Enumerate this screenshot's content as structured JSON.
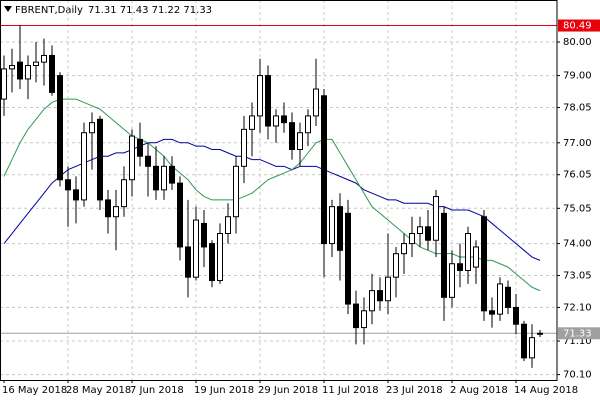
{
  "chart_data": {
    "type": "candlestick",
    "title": "FBRENT,Daily",
    "info": "71.31 71.43 71.22 71.33",
    "categories": [
      "16 May 2018",
      null,
      null,
      null,
      null,
      null,
      null,
      null,
      "28 May 2018",
      null,
      null,
      null,
      null,
      null,
      null,
      null,
      "7 Jun 2018",
      null,
      null,
      null,
      null,
      null,
      null,
      null,
      "19 Jun 2018",
      null,
      null,
      null,
      null,
      null,
      null,
      null,
      "29 Jun 2018",
      null,
      null,
      null,
      null,
      null,
      null,
      null,
      "11 Jul 2018",
      null,
      null,
      null,
      null,
      null,
      null,
      null,
      "23 Jul 2018",
      null,
      null,
      null,
      null,
      null,
      null,
      null,
      "2 Aug 2018",
      null,
      null,
      null,
      null,
      null,
      null,
      null,
      "14 Aug 2018",
      null,
      null,
      null
    ],
    "open": [
      78.3,
      79.2,
      79.4,
      78.9,
      79.3,
      79.4,
      79.6,
      79.0,
      75.9,
      75.6,
      75.3,
      77.3,
      77.7,
      75.3,
      74.8,
      75.1,
      75.9,
      77.1,
      76.6,
      76.3,
      75.6,
      76.3,
      75.8,
      73.9,
      73.0,
      74.6,
      74.0,
      72.9,
      74.3,
      74.8,
      76.3,
      77.4,
      77.8,
      79.0,
      77.5,
      77.8,
      77.6,
      76.8,
      77.3,
      77.8,
      78.4,
      74.0,
      75.1,
      74.9,
      72.2,
      71.5,
      72.0,
      72.6,
      72.3,
      73.0,
      73.7,
      74.0,
      74.3,
      74.5,
      74.1,
      74.9,
      72.4,
      73.4,
      73.2,
      73.3,
      74.8,
      72.0,
      71.9,
      72.7,
      72.1,
      71.6,
      70.6,
      71.31
    ],
    "high": [
      79.6,
      79.8,
      80.49,
      79.6,
      80.0,
      80.1,
      79.9,
      79.1,
      76.3,
      76.0,
      77.6,
      77.9,
      77.8,
      75.6,
      75.6,
      76.3,
      77.4,
      77.6,
      77.0,
      76.9,
      76.6,
      76.6,
      76.0,
      75.3,
      75.1,
      75.0,
      74.1,
      74.6,
      75.2,
      76.6,
      77.8,
      78.2,
      79.5,
      79.3,
      78.0,
      78.2,
      77.9,
      77.6,
      78.0,
      79.5,
      78.6,
      75.3,
      75.5,
      75.3,
      72.6,
      72.4,
      73.1,
      73.0,
      74.3,
      73.9,
      74.3,
      74.8,
      74.8,
      75.0,
      75.6,
      75.1,
      73.8,
      74.0,
      74.5,
      74.1,
      75.0,
      72.4,
      73.0,
      72.9,
      72.5,
      71.7,
      71.6,
      71.43
    ],
    "low": [
      77.8,
      78.5,
      78.6,
      78.3,
      78.8,
      78.7,
      78.4,
      75.7,
      74.5,
      74.6,
      75.1,
      76.2,
      75.0,
      74.3,
      73.8,
      74.8,
      75.4,
      76.3,
      75.4,
      75.3,
      75.3,
      75.6,
      73.5,
      72.4,
      72.9,
      73.3,
      72.7,
      72.8,
      74.0,
      74.3,
      75.8,
      76.6,
      77.3,
      77.1,
      77.0,
      77.3,
      76.5,
      76.3,
      76.9,
      77.5,
      73.0,
      73.6,
      72.9,
      71.9,
      71.0,
      71.0,
      71.6,
      72.0,
      71.9,
      72.4,
      73.1,
      73.6,
      73.9,
      73.8,
      73.6,
      71.7,
      72.1,
      72.7,
      72.8,
      72.8,
      71.7,
      71.5,
      71.7,
      71.9,
      71.3,
      70.5,
      70.3,
      71.22
    ],
    "close": [
      79.2,
      79.3,
      78.9,
      79.3,
      79.4,
      79.6,
      78.5,
      75.9,
      75.6,
      75.3,
      77.3,
      77.6,
      75.3,
      74.8,
      75.1,
      75.9,
      77.2,
      76.6,
      76.3,
      75.6,
      76.3,
      75.8,
      73.9,
      73.0,
      74.7,
      73.9,
      72.9,
      74.3,
      74.8,
      76.3,
      77.4,
      77.8,
      79.0,
      77.5,
      77.8,
      77.6,
      76.8,
      77.3,
      77.8,
      78.6,
      74.0,
      75.1,
      73.8,
      72.2,
      71.5,
      72.0,
      72.6,
      72.3,
      73.0,
      73.7,
      74.0,
      74.3,
      74.5,
      74.1,
      75.4,
      72.4,
      73.4,
      73.2,
      74.3,
      73.9,
      72.0,
      71.9,
      72.8,
      72.1,
      71.6,
      70.6,
      71.2,
      71.33
    ],
    "up_color": "#ffffff",
    "down_color": "#000000",
    "series": [
      {
        "color": "#0000a0",
        "values": [
          74.0,
          74.3,
          74.6,
          74.9,
          75.2,
          75.5,
          75.8,
          76.0,
          76.2,
          76.3,
          76.4,
          76.5,
          76.6,
          76.6,
          76.7,
          76.7,
          76.8,
          76.9,
          77.0,
          77.0,
          77.1,
          77.1,
          77.0,
          77.0,
          76.9,
          76.9,
          76.8,
          76.8,
          76.7,
          76.6,
          76.6,
          76.5,
          76.5,
          76.4,
          76.3,
          76.3,
          76.2,
          76.3,
          76.3,
          76.3,
          76.2,
          76.1,
          76.0,
          75.9,
          75.8,
          75.6,
          75.5,
          75.4,
          75.3,
          75.3,
          75.2,
          75.2,
          75.2,
          75.2,
          75.1,
          75.1,
          75.0,
          75.0,
          75.0,
          74.9,
          74.8,
          74.6,
          74.4,
          74.2,
          74.0,
          73.8,
          73.6,
          73.5
        ]
      },
      {
        "color": "#2e9a4e",
        "values": [
          76.0,
          76.5,
          77.0,
          77.4,
          77.7,
          78.0,
          78.2,
          78.3,
          78.3,
          78.3,
          78.2,
          78.1,
          78.0,
          77.8,
          77.6,
          77.4,
          77.2,
          77.1,
          77.0,
          76.8,
          76.6,
          76.3,
          76.1,
          75.9,
          75.6,
          75.4,
          75.3,
          75.3,
          75.3,
          75.3,
          75.4,
          75.5,
          75.7,
          75.9,
          76.0,
          76.1,
          76.2,
          76.4,
          76.7,
          77.0,
          77.1,
          77.1,
          76.7,
          76.3,
          75.9,
          75.5,
          75.1,
          74.9,
          74.7,
          74.5,
          74.3,
          74.1,
          73.9,
          73.8,
          73.7,
          73.7,
          73.7,
          73.6,
          73.6,
          73.6,
          73.5,
          73.5,
          73.4,
          73.3,
          73.1,
          72.9,
          72.7,
          72.6
        ]
      }
    ],
    "price_lines": [
      {
        "value": 80.49,
        "color": "#e8000b"
      },
      {
        "value": 71.33,
        "color": "#a0a0a0"
      }
    ],
    "ylim": [
      69.94,
      81.25
    ],
    "yticks": [
      {
        "value": 80,
        "label": "80.00"
      },
      {
        "value": 79,
        "label": "79.00"
      },
      78.05,
      {
        "value": 77,
        "label": "77.00"
      },
      76.05,
      75.05,
      {
        "value": 74,
        "label": "74.00"
      },
      73.05,
      {
        "value": 72.1,
        "label": "72.10"
      },
      {
        "value": 71.1,
        "label": "71.10"
      },
      {
        "value": 70.1,
        "label": "70.10"
      }
    ],
    "grid": true
  }
}
